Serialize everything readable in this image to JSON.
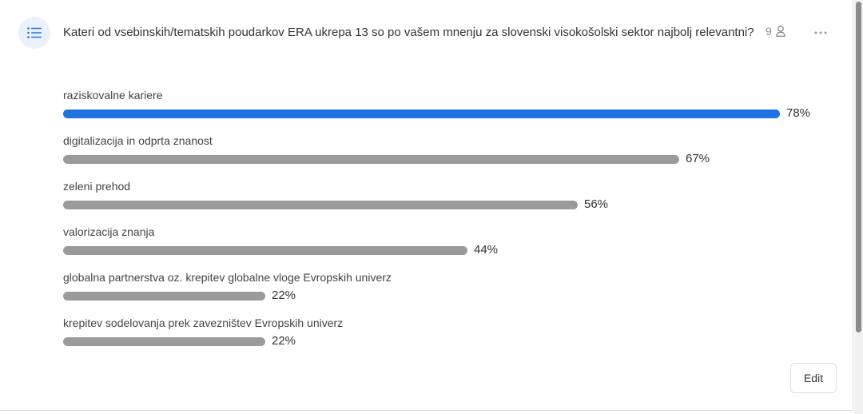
{
  "question": {
    "text": "Kateri od vsebinskih/tematskih poudarkov ERA ukrepa 13 so po vašem mnenju za slovenski visokošolski sektor najbolj relevantni?",
    "response_count": "9"
  },
  "icons": {
    "poll": "list-icon",
    "responses": "person-icon",
    "more": "more-horizontal-icon"
  },
  "colors": {
    "accent": "#1f72e0",
    "bar": "#9a9a9a",
    "icon_bg": "#eaf1fb"
  },
  "results": [
    {
      "label": "raziskovalne kariere",
      "percent": 78,
      "percent_label": "78%",
      "highlight": true
    },
    {
      "label": "digitalizacija in odprta znanost",
      "percent": 67,
      "percent_label": "67%",
      "highlight": false
    },
    {
      "label": "zeleni prehod",
      "percent": 56,
      "percent_label": "56%",
      "highlight": false
    },
    {
      "label": "valorizacija znanja",
      "percent": 44,
      "percent_label": "44%",
      "highlight": false
    },
    {
      "label": "globalna partnerstva oz. krepitev globalne vloge Evropskih univerz",
      "percent": 22,
      "percent_label": "22%",
      "highlight": false
    },
    {
      "label": "krepitev sodelovanja prek zavezništev Evropskih univerz",
      "percent": 22,
      "percent_label": "22%",
      "highlight": false
    }
  ],
  "actions": {
    "edit_label": "Edit"
  }
}
